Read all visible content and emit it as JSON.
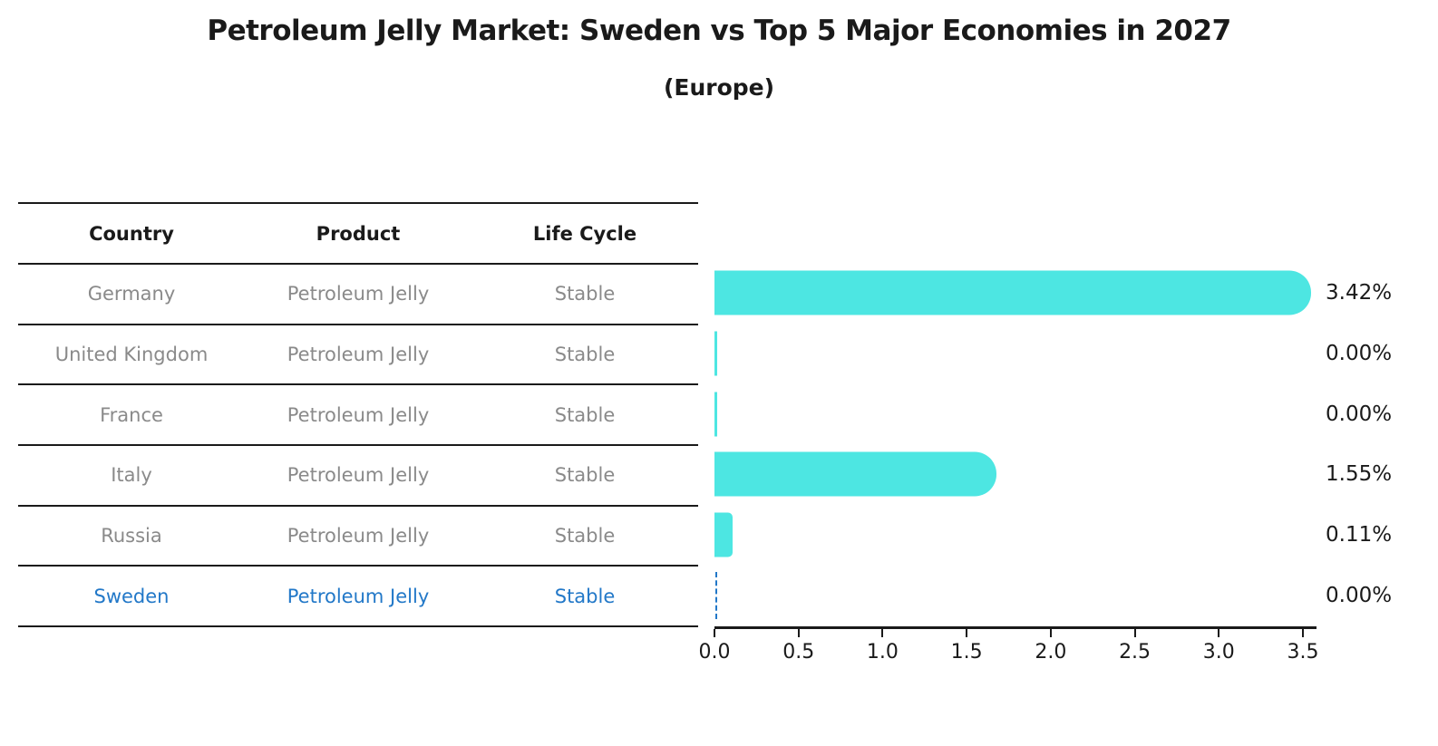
{
  "title": "Petroleum Jelly Market: Sweden vs Top 5 Major Economies in 2027",
  "subtitle": "(Europe)",
  "colors": {
    "bar": "#4DE6E2",
    "highlight_blue": "#2278C8",
    "table_text_gray": "#8A8A8A",
    "ink": "#1A1A1A"
  },
  "table": {
    "headers": [
      "Country",
      "Product",
      "Life Cycle"
    ],
    "rows": [
      {
        "country": "Germany",
        "product": "Petroleum Jelly",
        "life_cycle": "Stable"
      },
      {
        "country": "United Kingdom",
        "product": "Petroleum Jelly",
        "life_cycle": "Stable"
      },
      {
        "country": "France",
        "product": "Petroleum Jelly",
        "life_cycle": "Stable"
      },
      {
        "country": "Italy",
        "product": "Petroleum Jelly",
        "life_cycle": "Stable"
      },
      {
        "country": "Russia",
        "product": "Petroleum Jelly",
        "life_cycle": "Stable"
      },
      {
        "country": "Sweden",
        "product": "Petroleum Jelly",
        "life_cycle": "Stable"
      }
    ]
  },
  "chart_data": {
    "type": "bar",
    "orientation": "horizontal",
    "title": "Petroleum Jelly Market: Sweden vs Top 5 Major Economies in 2027",
    "subtitle": "(Europe)",
    "categories": [
      "Germany",
      "United Kingdom",
      "France",
      "Italy",
      "Russia",
      "Sweden"
    ],
    "values": [
      3.42,
      0.0,
      0.0,
      1.55,
      0.11,
      0.0
    ],
    "value_labels": [
      "3.42%",
      "0.00%",
      "0.00%",
      "1.55%",
      "0.11%",
      "0.00%"
    ],
    "highlight_index": 5,
    "highlight_style": "dashed-line",
    "xlim": [
      0,
      3.5
    ],
    "xticks": [
      "0.0",
      "0.5",
      "1.0",
      "1.5",
      "2.0",
      "2.5",
      "3.0",
      "3.5"
    ],
    "grid": false,
    "legend": false
  }
}
